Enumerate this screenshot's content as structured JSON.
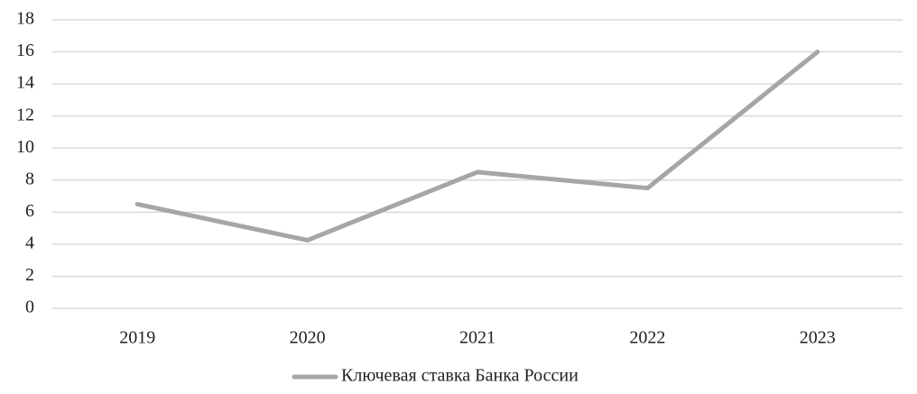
{
  "chart_data": {
    "type": "line",
    "categories": [
      "2019",
      "2020",
      "2021",
      "2022",
      "2023"
    ],
    "series": [
      {
        "name": "Ключевая ставка Банка России",
        "color": "#a6a6a6",
        "values": [
          6.5,
          4.25,
          8.5,
          7.5,
          16
        ]
      }
    ],
    "ylim": [
      0,
      18
    ],
    "yticks": [
      0,
      2,
      4,
      6,
      8,
      10,
      12,
      14,
      16,
      18
    ],
    "grid": true,
    "legend": "bottom"
  }
}
